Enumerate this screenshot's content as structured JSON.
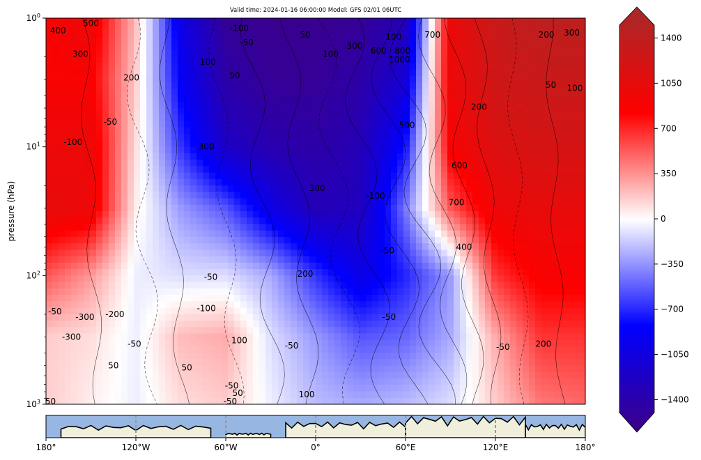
{
  "chart_data": [
    {
      "type": "heatmap",
      "title": "Valid time: 2024-01-16 06:00:00 Model: GFS 02/01 06UTC",
      "ylabel": "pressure (hPa)",
      "y_scale": "log",
      "y_inverted": true,
      "ylim": [
        1000,
        1
      ],
      "xlim": [
        -180,
        180
      ],
      "y_tick_labels": [
        "10^0",
        "10^1",
        "10^2",
        "10^3"
      ],
      "colormap": [
        "#3d0087",
        "#0000ff",
        "#ffffff",
        "#ff0000",
        "#a52a2a"
      ],
      "color_range": [
        -1500,
        1500
      ],
      "filled_field": {
        "description_units": "colorbar units",
        "lon": [
          -180,
          -150,
          -120,
          -90,
          -60,
          -30,
          0,
          30,
          60,
          90,
          120,
          150,
          180
        ],
        "pressure": [
          1,
          3,
          10,
          30,
          100,
          300,
          1000
        ],
        "values": [
          [
            800,
            900,
            200,
            -900,
            -1400,
            -1450,
            -1450,
            -1400,
            -1200,
            900,
            1200,
            1300,
            1300
          ],
          [
            800,
            800,
            150,
            -800,
            -1300,
            -1400,
            -1400,
            -1300,
            -1000,
            900,
            1150,
            1200,
            1200
          ],
          [
            900,
            900,
            100,
            -600,
            -1100,
            -1250,
            -1300,
            -1200,
            -700,
            800,
            1050,
            1100,
            1100
          ],
          [
            950,
            900,
            50,
            -300,
            -500,
            -900,
            -1200,
            -1150,
            -400,
            500,
            900,
            950,
            950
          ],
          [
            500,
            300,
            -50,
            -100,
            -100,
            -250,
            -600,
            -900,
            -650,
            -300,
            600,
            800,
            800
          ],
          [
            150,
            100,
            -50,
            200,
            250,
            -100,
            -300,
            -500,
            -450,
            -250,
            250,
            600,
            600
          ],
          [
            150,
            50,
            -50,
            100,
            150,
            -50,
            -200,
            -250,
            -200,
            -100,
            150,
            400,
            450
          ]
        ]
      },
      "contour_labels": [
        {
          "text": "500",
          "lon": -150,
          "p": 1.1
        },
        {
          "text": "400",
          "lon": -172,
          "p": 1.25
        },
        {
          "text": "300",
          "lon": -157,
          "p": 1.9
        },
        {
          "text": "200",
          "lon": -123,
          "p": 2.9
        },
        {
          "text": "-50",
          "lon": -137,
          "p": 6.4
        },
        {
          "text": "-100",
          "lon": -162,
          "p": 9.2
        },
        {
          "text": "-100",
          "lon": -51,
          "p": 1.2
        },
        {
          "text": "-50",
          "lon": -46,
          "p": 1.55
        },
        {
          "text": "100",
          "lon": -72,
          "p": 2.2
        },
        {
          "text": "50",
          "lon": -54,
          "p": 2.8
        },
        {
          "text": "50",
          "lon": -7,
          "p": 1.35
        },
        {
          "text": "100",
          "lon": 10,
          "p": 1.9
        },
        {
          "text": "300",
          "lon": 26,
          "p": 1.65
        },
        {
          "text": "600",
          "lon": 42,
          "p": 1.8
        },
        {
          "text": "100",
          "lon": 52,
          "p": 1.4
        },
        {
          "text": "800",
          "lon": 58,
          "p": 1.8
        },
        {
          "text": "1000",
          "lon": 56,
          "p": 2.1
        },
        {
          "text": "700",
          "lon": 78,
          "p": 1.35
        },
        {
          "text": "200",
          "lon": 154,
          "p": 1.35
        },
        {
          "text": "300",
          "lon": 171,
          "p": 1.3
        },
        {
          "text": "50",
          "lon": 157,
          "p": 3.3
        },
        {
          "text": "100",
          "lon": 173,
          "p": 3.5
        },
        {
          "text": "200",
          "lon": 109,
          "p": 4.9
        },
        {
          "text": "500",
          "lon": 61,
          "p": 6.8
        },
        {
          "text": "300",
          "lon": -73,
          "p": 10
        },
        {
          "text": "300",
          "lon": 1,
          "p": 21
        },
        {
          "text": "-100",
          "lon": 40,
          "p": 24
        },
        {
          "text": "600",
          "lon": 96,
          "p": 14
        },
        {
          "text": "700",
          "lon": 94,
          "p": 27
        },
        {
          "text": "400",
          "lon": 99,
          "p": 60
        },
        {
          "text": "-50",
          "lon": 48,
          "p": 64
        },
        {
          "text": "200",
          "lon": -7,
          "p": 97
        },
        {
          "text": "-50",
          "lon": -70,
          "p": 103
        },
        {
          "text": "-100",
          "lon": -73,
          "p": 180
        },
        {
          "text": "100",
          "lon": -51,
          "p": 320
        },
        {
          "text": "-50",
          "lon": -174,
          "p": 190
        },
        {
          "text": "-300",
          "lon": -154,
          "p": 210
        },
        {
          "text": "-200",
          "lon": -134,
          "p": 200
        },
        {
          "text": "-300",
          "lon": -163,
          "p": 300
        },
        {
          "text": "-50",
          "lon": -121,
          "p": 340
        },
        {
          "text": "50",
          "lon": -135,
          "p": 500
        },
        {
          "text": "50",
          "lon": -86,
          "p": 520
        },
        {
          "text": "-50",
          "lon": -16,
          "p": 350
        },
        {
          "text": "-50",
          "lon": 49,
          "p": 210
        },
        {
          "text": "-50",
          "lon": 125,
          "p": 360
        },
        {
          "text": "200",
          "lon": 152,
          "p": 340
        },
        {
          "text": "-50",
          "lon": -56,
          "p": 720
        },
        {
          "text": "50",
          "lon": -52,
          "p": 820
        },
        {
          "text": "-50",
          "lon": -57,
          "p": 950
        },
        {
          "text": "100",
          "lon": -6,
          "p": 840
        },
        {
          "text": "50",
          "lon": -177,
          "p": 950
        }
      ]
    },
    {
      "type": "colorbar",
      "tick_labels": [
        "1400",
        "1050",
        "700",
        "350",
        "0",
        "−350",
        "−700",
        "−1050",
        "−1400"
      ],
      "tick_values": [
        1400,
        1050,
        700,
        350,
        0,
        -350,
        -700,
        -1050,
        -1400
      ],
      "range": [
        -1500,
        1500
      ],
      "extend": "both"
    },
    {
      "type": "map-strip",
      "x_tick_labels": [
        "180°",
        "120°W",
        "60°W",
        "0°",
        "60°E",
        "120°E",
        "180°"
      ],
      "x_tick_values": [
        -180,
        -120,
        -60,
        0,
        60,
        120,
        180
      ],
      "ocean_color": "#97b6e1",
      "land_color": "#efefdb"
    }
  ]
}
